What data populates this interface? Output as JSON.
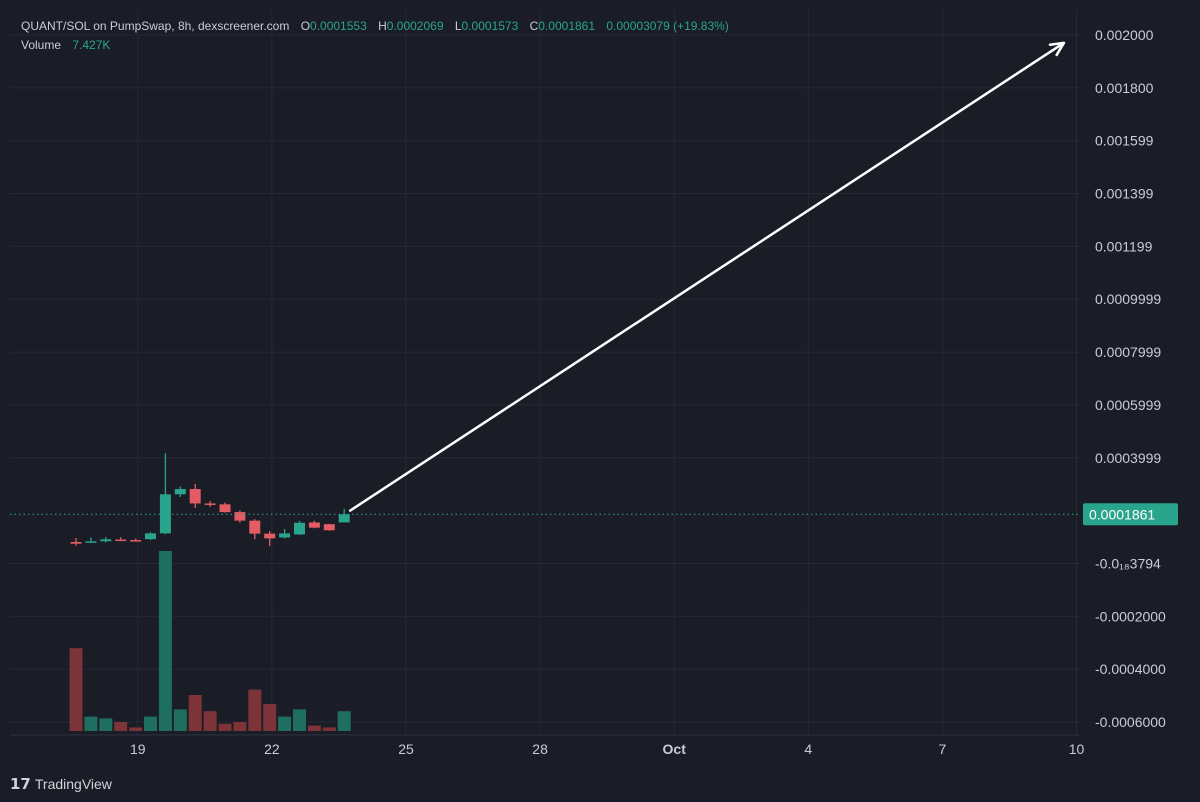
{
  "legend": {
    "pair": "QUANT/SOL on PumpSwap, 8h, dexscreener.com",
    "open_key": "O",
    "open": "0.0001553",
    "high_key": "H",
    "high": "0.0002069",
    "low_key": "L",
    "low": "0.0001573",
    "close_key": "C",
    "close": "0.0001861",
    "change": "0.00003079 (+19.83%)",
    "volume_key": "Volume",
    "volume": "7.427K"
  },
  "last_price_label": "0.0001861",
  "branding": {
    "logo_text": "TradingView"
  },
  "colors": {
    "up": "#2aa58d",
    "down": "#e25c63",
    "up_volume": "#1f6f60",
    "down_volume": "#7c3438",
    "grid": "#262a36",
    "arrow": "#ffffff"
  },
  "chart_data": {
    "type": "candlestick",
    "y_axis": {
      "range": [
        -0.0006,
        0.002
      ],
      "ticks": [
        {
          "value": 0.002,
          "label": "0.002000"
        },
        {
          "value": 0.0018,
          "label": "0.001800"
        },
        {
          "value": 0.0016,
          "label": "0.001599"
        },
        {
          "value": 0.0014,
          "label": "0.001399"
        },
        {
          "value": 0.0012,
          "label": "0.001199"
        },
        {
          "value": 0.001,
          "label": "0.0009999"
        },
        {
          "value": 0.0008,
          "label": "0.0007999"
        },
        {
          "value": 0.0006,
          "label": "0.0005999"
        },
        {
          "value": 0.0004,
          "label": "0.0003999"
        },
        {
          "value": -3.794e-20,
          "label": "-0.0₁₈3794"
        },
        {
          "value": -0.0002,
          "label": "-0.0002000"
        },
        {
          "value": -0.0004,
          "label": "-0.0004000"
        },
        {
          "value": -0.0006,
          "label": "-0.0006000"
        }
      ]
    },
    "x_axis": {
      "ticks": [
        {
          "index": 2,
          "label": "19"
        },
        {
          "index": 11,
          "label": "22"
        },
        {
          "index": 20,
          "label": "25"
        },
        {
          "index": 29,
          "label": "28"
        },
        {
          "index": 38,
          "label": "Oct"
        },
        {
          "index": 47,
          "label": "4"
        },
        {
          "index": 56,
          "label": "7"
        },
        {
          "index": 65,
          "label": "10"
        }
      ]
    },
    "candles": [
      {
        "i": 0,
        "o": 8.12e-05,
        "h": 9.64e-05,
        "l": 6.73e-05,
        "c": 7.48e-05
      },
      {
        "i": 1,
        "o": 8.24e-05,
        "h": 9.81e-05,
        "l": 7.87e-05,
        "c": 8.38e-05
      },
      {
        "i": 2,
        "o": 8.4e-05,
        "h": 0.0001,
        "l": 8e-05,
        "c": 9.15e-05
      },
      {
        "i": 3,
        "o": 9.05e-05,
        "h": 9.91e-05,
        "l": 8.78e-05,
        "c": 8.89e-05
      },
      {
        "i": 4,
        "o": 8.85e-05,
        "h": 9.4e-05,
        "l": 8.54e-05,
        "c": 8.69e-05
      },
      {
        "i": 5,
        "o": 9.2e-05,
        "h": 0.000118,
        "l": 8.9e-05,
        "c": 0.0001139
      },
      {
        "i": 6,
        "o": 0.0001139,
        "h": 0.0004171,
        "l": 0.0001107,
        "c": 0.0002617
      },
      {
        "i": 7,
        "o": 0.0002617,
        "h": 0.0002908,
        "l": 0.0002514,
        "c": 0.0002818
      },
      {
        "i": 8,
        "o": 0.0002818,
        "h": 0.0003012,
        "l": 0.0002099,
        "c": 0.0002271
      },
      {
        "i": 9,
        "o": 0.0002271,
        "h": 0.000236,
        "l": 0.0002143,
        "c": 0.0002237
      },
      {
        "i": 10,
        "o": 0.0002237,
        "h": 0.0002304,
        "l": 0.0001923,
        "c": 0.0001944
      },
      {
        "i": 11,
        "o": 0.0001944,
        "h": 0.0002008,
        "l": 0.0001549,
        "c": 0.0001621
      },
      {
        "i": 12,
        "o": 0.0001621,
        "h": 0.0001676,
        "l": 9.17e-05,
        "c": 0.0001128
      },
      {
        "i": 13,
        "o": 0.0001128,
        "h": 0.0001232,
        "l": 6.59e-05,
        "c": 9.5e-05
      },
      {
        "i": 14,
        "o": 9.84e-05,
        "h": 0.0001301,
        "l": 9.47e-05,
        "c": 0.0001138
      },
      {
        "i": 15,
        "o": 0.0001099,
        "h": 0.0001614,
        "l": 0.0001077,
        "c": 0.000154
      },
      {
        "i": 16,
        "o": 0.000155,
        "h": 0.0001619,
        "l": 0.000133,
        "c": 0.0001355
      },
      {
        "i": 17,
        "o": 0.0001485,
        "h": 0.00015,
        "l": 0.0001242,
        "c": 0.0001256
      },
      {
        "i": 18,
        "o": 0.0001553,
        "h": 0.0002069,
        "l": 0.0001573,
        "c": 0.0001861
      }
    ],
    "volume_relative": [
      0.46,
      0.08,
      0.07,
      0.05,
      0.02,
      0.08,
      1.0,
      0.12,
      0.2,
      0.11,
      0.04,
      0.05,
      0.23,
      0.15,
      0.08,
      0.12,
      0.03,
      0.02,
      0.11
    ],
    "annotation": {
      "type": "arrow",
      "from": {
        "i": 18.4,
        "v": 0.0002
      },
      "to": {
        "i": 66.3,
        "v": 0.00197
      }
    }
  }
}
